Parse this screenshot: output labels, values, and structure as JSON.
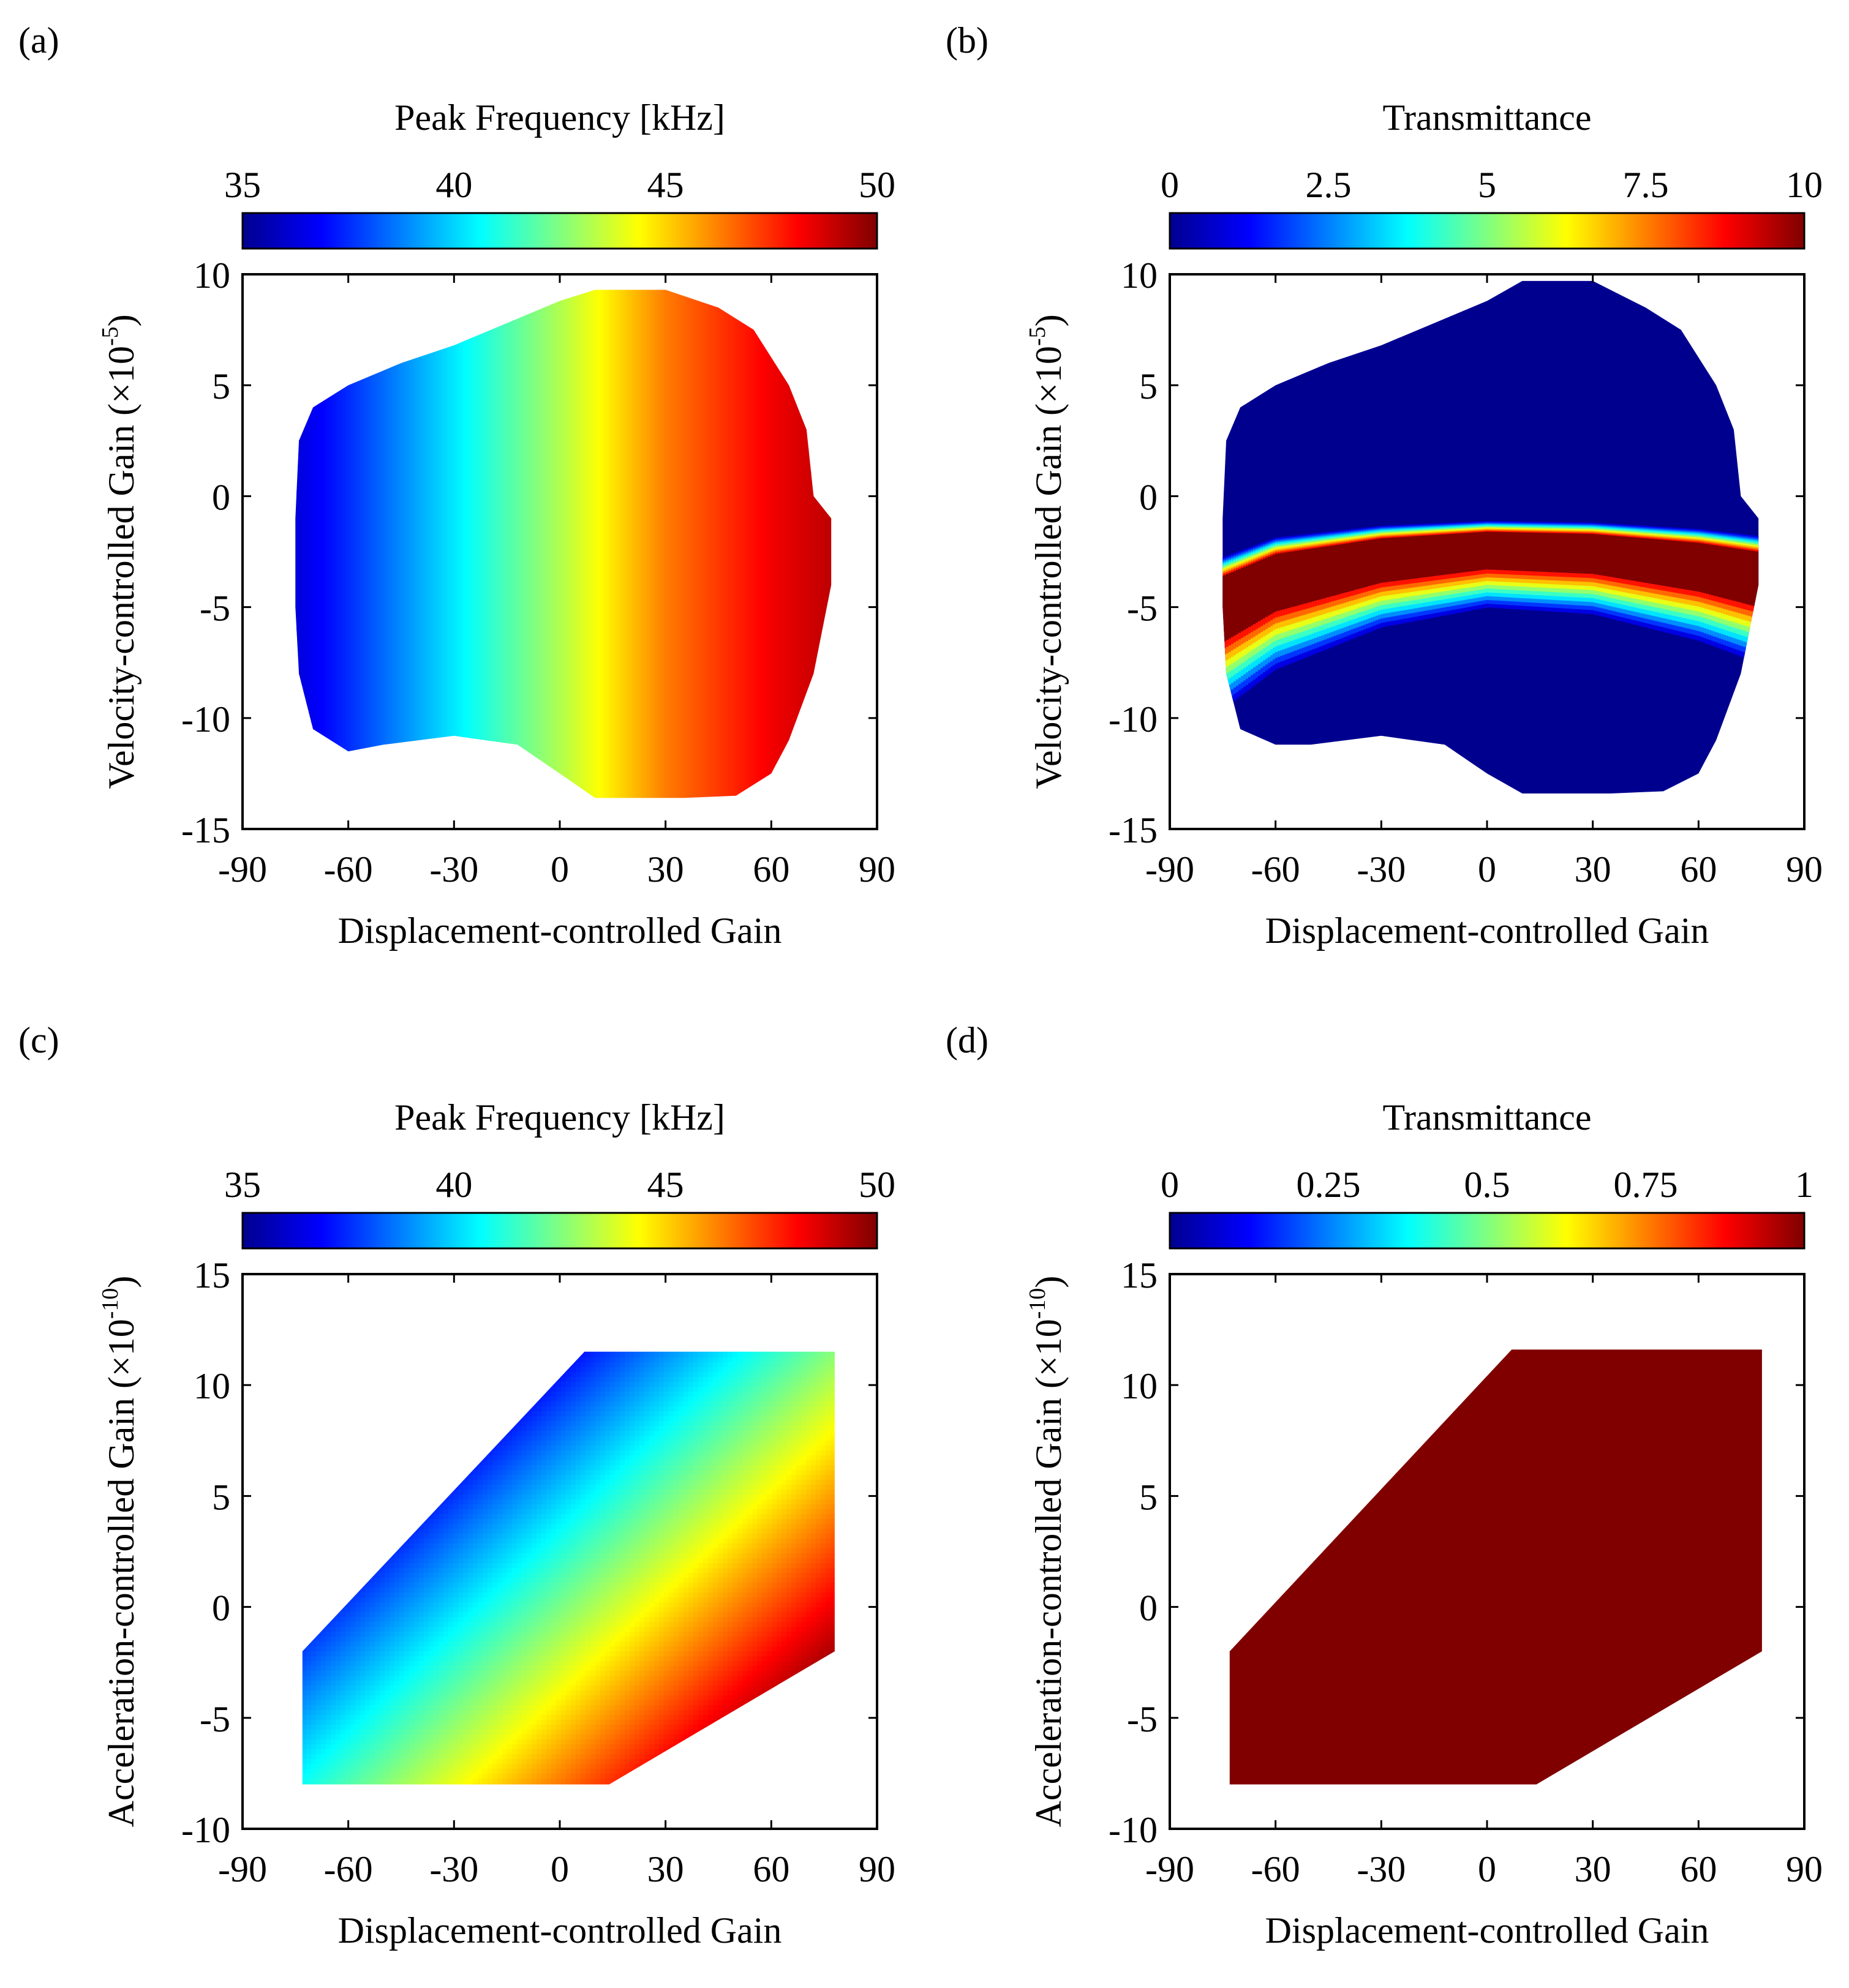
{
  "colormap": [
    "#00008f",
    "#0000ff",
    "#0080ff",
    "#00ffff",
    "#80ff80",
    "#ffff00",
    "#ff8000",
    "#ff0000",
    "#800000"
  ],
  "chart_data": [
    {
      "panel_label": "(a)",
      "type": "heatmap",
      "title": "Peak Frequency [kHz]",
      "xlabel": "Displacement-controlled Gain",
      "ylabel_main": "Velocity-controlled Gain (×10",
      "ylabel_exp": "-5",
      "ylabel_close": ")",
      "xlim": [
        -90,
        90
      ],
      "ylim": [
        -15,
        10
      ],
      "xticks": [
        -90,
        -60,
        -30,
        0,
        30,
        60,
        90
      ],
      "xtick_labels": [
        "-90",
        "-60",
        "-30",
        "0",
        "30",
        "60",
        "90"
      ],
      "yticks": [
        -15,
        -10,
        -5,
        0,
        5,
        10
      ],
      "ytick_labels": [
        "-15",
        "-10",
        "-5",
        "0",
        "5",
        "10"
      ],
      "colorbar": {
        "range": [
          35,
          50
        ],
        "ticks": [
          35,
          40,
          45,
          50
        ],
        "tick_labels": [
          "35",
          "40",
          "45",
          "50"
        ]
      },
      "region": [
        [
          -75,
          -1
        ],
        [
          -74,
          2.5
        ],
        [
          -70,
          4
        ],
        [
          -60,
          5
        ],
        [
          -45,
          6
        ],
        [
          -30,
          6.8
        ],
        [
          -15,
          7.8
        ],
        [
          0,
          8.8
        ],
        [
          10,
          9.3
        ],
        [
          30,
          9.3
        ],
        [
          45,
          8.5
        ],
        [
          55,
          7.5
        ],
        [
          65,
          5
        ],
        [
          70,
          3
        ],
        [
          72,
          0
        ],
        [
          77,
          -1
        ],
        [
          77,
          -4
        ],
        [
          72,
          -8
        ],
        [
          65,
          -11
        ],
        [
          60,
          -12.5
        ],
        [
          50,
          -13.5
        ],
        [
          35,
          -13.6
        ],
        [
          10,
          -13.6
        ],
        [
          0,
          -12.5
        ],
        [
          -12,
          -11.2
        ],
        [
          -30,
          -10.8
        ],
        [
          -50,
          -11.2
        ],
        [
          -60,
          -11.5
        ],
        [
          -70,
          -10.5
        ],
        [
          -74,
          -8
        ],
        [
          -75,
          -5
        ]
      ],
      "field": {
        "kind": "linear-x",
        "value_at_x": [
          [
            -90,
            35
          ],
          [
            -60,
            37.5
          ],
          [
            -30,
            40.3
          ],
          [
            0,
            43.2
          ],
          [
            30,
            46.3
          ],
          [
            60,
            48.3
          ],
          [
            90,
            49.7
          ]
        ]
      }
    },
    {
      "panel_label": "(b)",
      "type": "heatmap",
      "title": "Transmittance",
      "xlabel": "Displacement-controlled Gain",
      "ylabel_main": "Velocity-controlled Gain (×10",
      "ylabel_exp": "-5",
      "ylabel_close": ")",
      "xlim": [
        -90,
        90
      ],
      "ylim": [
        -15,
        10
      ],
      "xticks": [
        -90,
        -60,
        -30,
        0,
        30,
        60,
        90
      ],
      "xtick_labels": [
        "-90",
        "-60",
        "-30",
        "0",
        "30",
        "60",
        "90"
      ],
      "yticks": [
        -15,
        -10,
        -5,
        0,
        5,
        10
      ],
      "ytick_labels": [
        "-15",
        "-10",
        "-5",
        "0",
        "5",
        "10"
      ],
      "colorbar": {
        "range": [
          0,
          10
        ],
        "ticks": [
          0,
          2.5,
          5,
          7.5,
          10
        ],
        "tick_labels": [
          "0",
          "2.5",
          "5",
          "7.5",
          "10"
        ]
      },
      "region": [
        [
          -75,
          -1
        ],
        [
          -74,
          2.5
        ],
        [
          -70,
          4
        ],
        [
          -60,
          5
        ],
        [
          -45,
          6
        ],
        [
          -30,
          6.8
        ],
        [
          -15,
          7.8
        ],
        [
          0,
          8.8
        ],
        [
          10,
          9.7
        ],
        [
          30,
          9.7
        ],
        [
          45,
          8.5
        ],
        [
          55,
          7.5
        ],
        [
          65,
          5
        ],
        [
          70,
          3
        ],
        [
          72,
          0
        ],
        [
          77,
          -1
        ],
        [
          77,
          -4
        ],
        [
          72,
          -8
        ],
        [
          65,
          -11
        ],
        [
          60,
          -12.5
        ],
        [
          50,
          -13.3
        ],
        [
          35,
          -13.4
        ],
        [
          10,
          -13.4
        ],
        [
          0,
          -12.5
        ],
        [
          -12,
          -11.2
        ],
        [
          -30,
          -10.8
        ],
        [
          -50,
          -11.2
        ],
        [
          -60,
          -11.2
        ],
        [
          -70,
          -10.5
        ],
        [
          -74,
          -8
        ],
        [
          -75,
          -5
        ]
      ],
      "field": {
        "kind": "resonance-band",
        "band_top": [
          [
            -75,
            -3.6
          ],
          [
            -60,
            -2.6
          ],
          [
            -30,
            -1.9
          ],
          [
            0,
            -1.6
          ],
          [
            30,
            -1.7
          ],
          [
            60,
            -2.1
          ],
          [
            77,
            -2.5
          ]
        ],
        "band_bottom": [
          [
            -75,
            -6.6
          ],
          [
            -60,
            -5.2
          ],
          [
            -30,
            -3.9
          ],
          [
            0,
            -3.3
          ],
          [
            30,
            -3.5
          ],
          [
            60,
            -4.3
          ],
          [
            77,
            -5.0
          ]
        ]
      }
    },
    {
      "panel_label": "(c)",
      "type": "heatmap",
      "title": "Peak Frequency [kHz]",
      "xlabel": "Displacement-controlled Gain",
      "ylabel_main": "Acceleration-controlled Gain (×10",
      "ylabel_exp": "-10",
      "ylabel_close": ")",
      "xlim": [
        -90,
        90
      ],
      "ylim": [
        -10,
        15
      ],
      "xticks": [
        -90,
        -60,
        -30,
        0,
        30,
        60,
        90
      ],
      "xtick_labels": [
        "-90",
        "-60",
        "-30",
        "0",
        "30",
        "60",
        "90"
      ],
      "yticks": [
        -10,
        -5,
        0,
        5,
        10,
        15
      ],
      "ytick_labels": [
        "-10",
        "-5",
        "0",
        "5",
        "10",
        "15"
      ],
      "colorbar": {
        "range": [
          35,
          50
        ],
        "ticks": [
          35,
          40,
          45,
          50
        ],
        "tick_labels": [
          "35",
          "40",
          "45",
          "50"
        ]
      },
      "region": [
        [
          -73,
          -2
        ],
        [
          7,
          11.5
        ],
        [
          78,
          11.5
        ],
        [
          78,
          -2
        ],
        [
          14,
          -8
        ],
        [
          -73,
          -8
        ]
      ],
      "field": {
        "kind": "diagonal",
        "a": 42.4,
        "bx": 0.0767,
        "by": -0.5
      }
    },
    {
      "panel_label": "(d)",
      "type": "heatmap",
      "title": "Transmittance",
      "xlabel": "Displacement-controlled Gain",
      "ylabel_main": "Acceleration-controlled Gain (×10",
      "ylabel_exp": "-10",
      "ylabel_close": ")",
      "xlim": [
        -90,
        90
      ],
      "ylim": [
        -10,
        15
      ],
      "xticks": [
        -90,
        -60,
        -30,
        0,
        30,
        60,
        90
      ],
      "xtick_labels": [
        "-90",
        "-60",
        "-30",
        "0",
        "30",
        "60",
        "90"
      ],
      "yticks": [
        -10,
        -5,
        0,
        5,
        10,
        15
      ],
      "ytick_labels": [
        "-10",
        "-5",
        "0",
        "5",
        "10",
        "15"
      ],
      "colorbar": {
        "range": [
          0,
          1
        ],
        "ticks": [
          0,
          0.25,
          0.5,
          0.75,
          1
        ],
        "tick_labels": [
          "0",
          "0.25",
          "0.5",
          "0.75",
          "1"
        ]
      },
      "region": [
        [
          -73,
          -2
        ],
        [
          7,
          11.6
        ],
        [
          78,
          11.6
        ],
        [
          78,
          -2
        ],
        [
          14,
          -8
        ],
        [
          -73,
          -8
        ]
      ],
      "field": {
        "kind": "constant",
        "value": 1
      }
    }
  ]
}
